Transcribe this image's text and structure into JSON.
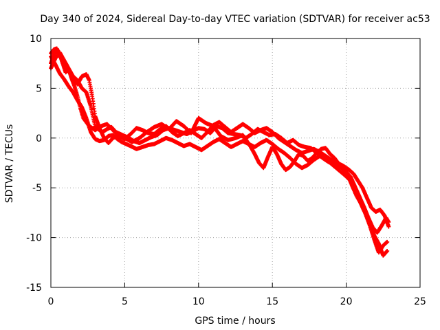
{
  "chart_data": {
    "type": "scatter",
    "title": "Day 340 of 2024, Sidereal Day-to-day VTEC variation (SDTVAR) for receiver ac53",
    "xlabel": "GPS time / hours",
    "ylabel": "SDTVAR / TECUs",
    "xlim": [
      0,
      25
    ],
    "ylim": [
      -15,
      10
    ],
    "xticks": [
      0,
      5,
      10,
      15,
      20,
      25
    ],
    "xtick_labels": [
      "0",
      "5",
      "10",
      "15",
      "20",
      "25"
    ],
    "yticks": [
      -15,
      -10,
      -5,
      0,
      5,
      10
    ],
    "ytick_labels": [
      "-15",
      "-10",
      "-5",
      "0",
      "5",
      "10"
    ],
    "grid": true,
    "marker": "+",
    "series": [
      {
        "name": "SDTVAR",
        "color": "#ff0000",
        "tracks": [
          {
            "x": [
              0.0,
              0.3,
              0.6,
              0.9,
              1.2,
              1.5,
              1.8,
              2.1,
              2.4,
              2.7,
              3.0,
              3.2,
              3.5,
              3.8,
              4.1,
              4.4,
              4.7,
              5.0,
              5.3,
              5.6,
              6.0,
              6.4,
              6.8,
              7.2,
              7.6,
              8.0,
              8.4,
              8.8,
              9.2,
              9.6,
              10.0,
              10.4,
              10.8,
              11.2,
              11.6,
              12.0,
              12.4,
              12.8,
              13.2,
              13.6,
              14.0,
              14.4,
              14.8,
              15.2,
              15.6,
              16.0,
              16.4,
              16.8,
              17.2,
              17.6,
              18.0,
              18.4,
              18.8,
              19.2,
              19.6,
              20.0,
              20.3,
              20.6,
              20.9,
              21.2,
              21.5,
              21.8,
              22.1,
              22.4,
              22.7,
              22.9
            ],
            "y": [
              7.5,
              8.8,
              8.2,
              7.6,
              6.8,
              6.2,
              5.8,
              5.0,
              4.6,
              3.2,
              1.2,
              0.9,
              0.6,
              0.9,
              1.1,
              0.6,
              0.4,
              0.2,
              0.0,
              -0.3,
              -0.5,
              -0.2,
              0.1,
              0.3,
              0.8,
              1.0,
              0.8,
              0.6,
              0.4,
              0.7,
              1.0,
              0.9,
              0.5,
              1.2,
              1.0,
              0.5,
              0.4,
              0.3,
              0.0,
              0.4,
              0.9,
              0.6,
              0.3,
              0.4,
              0.0,
              -0.5,
              -0.2,
              -0.7,
              -0.9,
              -1.0,
              -1.5,
              -2.0,
              -2.4,
              -2.6,
              -2.9,
              -3.4,
              -3.9,
              -4.9,
              -5.9,
              -6.9,
              -8.0,
              -9.0,
              -9.5,
              -8.8,
              -8.0,
              -8.5
            ]
          },
          {
            "x": [
              0.0,
              0.3,
              0.6,
              0.9,
              1.2,
              1.5,
              1.8,
              2.1,
              2.4,
              2.7,
              3.0,
              3.3,
              3.6,
              3.9,
              4.2,
              4.5,
              4.8,
              5.1,
              5.4,
              5.8,
              6.2,
              6.6,
              7.0,
              7.4,
              7.8,
              8.2,
              8.6,
              9.0,
              9.4,
              9.8,
              10.2,
              10.6,
              11.0,
              11.4,
              11.8,
              12.2,
              12.6,
              13.0,
              13.4,
              13.8,
              14.2,
              14.6,
              15.0,
              15.4,
              15.8,
              16.2,
              16.6,
              17.0,
              17.4,
              17.8,
              18.2,
              18.6,
              19.0,
              19.4,
              19.8,
              20.1,
              20.4,
              20.7,
              21.0,
              21.3,
              21.6,
              21.9,
              22.2,
              22.5,
              22.8
            ],
            "y": [
              8.2,
              7.4,
              6.5,
              5.9,
              5.2,
              4.6,
              3.8,
              3.1,
              2.0,
              0.6,
              -0.1,
              -0.3,
              -0.2,
              0.2,
              0.3,
              -0.1,
              -0.4,
              -0.6,
              -0.8,
              -1.1,
              -0.9,
              -0.7,
              -0.6,
              -0.3,
              0.0,
              -0.2,
              -0.5,
              -0.8,
              -0.6,
              -0.9,
              -1.2,
              -0.8,
              -0.4,
              -0.1,
              -0.5,
              -0.9,
              -0.6,
              -0.3,
              -0.6,
              -0.9,
              -0.5,
              -0.2,
              -0.6,
              -1.1,
              -1.5,
              -2.0,
              -2.6,
              -3.0,
              -2.7,
              -2.2,
              -1.8,
              -2.1,
              -2.6,
              -3.1,
              -3.6,
              -4.0,
              -4.5,
              -5.5,
              -6.6,
              -7.6,
              -8.6,
              -9.8,
              -10.6,
              -11.8,
              -11.3
            ]
          },
          {
            "x": [
              0.0,
              0.3,
              0.6,
              0.9,
              1.2,
              1.5,
              1.8,
              2.1,
              2.4,
              2.6,
              2.8,
              3.0,
              3.3,
              3.6,
              3.9,
              4.2,
              4.6,
              5.0,
              5.5,
              6.0,
              6.5,
              7.0,
              7.5,
              8.0,
              8.5,
              9.0,
              9.5,
              10.0,
              10.5,
              11.0,
              11.5,
              12.0,
              12.5,
              13.0,
              13.5,
              13.8,
              14.1,
              14.4,
              14.7,
              15.0,
              15.3,
              15.6,
              15.9,
              16.2,
              16.5,
              16.8,
              17.1,
              17.4,
              17.7,
              18.0,
              18.3,
              18.6,
              18.9,
              19.2,
              19.5,
              19.8,
              20.1,
              20.4,
              20.7,
              21.0,
              21.3,
              21.6,
              21.9,
              22.2,
              22.5,
              22.8
            ],
            "y": [
              7.0,
              8.0,
              8.6,
              7.8,
              7.0,
              6.2,
              5.4,
              6.2,
              6.4,
              5.8,
              4.2,
              2.2,
              1.0,
              0.0,
              -0.5,
              0.0,
              0.3,
              0.0,
              -0.4,
              0.0,
              0.6,
              1.1,
              1.4,
              0.9,
              1.7,
              1.2,
              0.5,
              2.0,
              1.5,
              1.2,
              0.2,
              -0.2,
              0.0,
              0.3,
              -0.8,
              -1.6,
              -2.5,
              -3.0,
              -1.9,
              -0.9,
              -1.6,
              -2.6,
              -3.2,
              -2.9,
              -2.3,
              -1.6,
              -1.8,
              -2.3,
              -2.0,
              -1.5,
              -1.1,
              -1.0,
              -1.6,
              -2.0,
              -2.6,
              -3.0,
              -3.7,
              -4.8,
              -5.8,
              -6.6,
              -7.6,
              -8.8,
              -10.2,
              -11.5,
              -10.8,
              -10.4
            ]
          },
          {
            "x": [
              0.0,
              0.2,
              0.4,
              0.6,
              0.8,
              1.0,
              1.2,
              1.4,
              1.6,
              1.8,
              2.0,
              2.2,
              2.4,
              2.6,
              2.8,
              3.0,
              3.4,
              3.8,
              4.2,
              4.6,
              5.0,
              5.4,
              5.8,
              6.2,
              6.6,
              7.0,
              7.4,
              7.8,
              8.2,
              8.6,
              9.0,
              9.4,
              9.8,
              10.2,
              10.6,
              11.0,
              11.4,
              11.8,
              12.2,
              12.6,
              13.0,
              13.4,
              13.8,
              14.2,
              14.6,
              15.0,
              15.4,
              15.8,
              16.2,
              16.6,
              17.0,
              17.4,
              17.8,
              18.2,
              18.6,
              19.0,
              19.4,
              19.8,
              20.2,
              20.5,
              20.8,
              21.1,
              21.4,
              21.7,
              22.0,
              22.3,
              22.6,
              22.9
            ],
            "y": [
              8.5,
              8.9,
              9.0,
              8.4,
              7.5,
              6.6,
              6.9,
              6.0,
              5.2,
              4.2,
              3.0,
              2.0,
              1.6,
              1.2,
              1.0,
              0.8,
              1.2,
              1.4,
              0.8,
              0.2,
              -0.1,
              0.4,
              1.0,
              0.8,
              0.5,
              0.4,
              0.9,
              1.2,
              0.6,
              0.2,
              0.5,
              0.8,
              0.4,
              0.0,
              0.6,
              1.3,
              1.6,
              1.1,
              0.6,
              1.0,
              1.4,
              1.0,
              0.5,
              0.8,
              1.0,
              0.6,
              0.0,
              -0.4,
              -0.8,
              -1.2,
              -1.5,
              -1.3,
              -1.1,
              -1.4,
              -1.8,
              -2.2,
              -2.5,
              -2.8,
              -3.2,
              -3.6,
              -4.3,
              -5.0,
              -6.0,
              -7.0,
              -7.4,
              -7.2,
              -7.8,
              -9.0
            ]
          }
        ]
      }
    ]
  }
}
